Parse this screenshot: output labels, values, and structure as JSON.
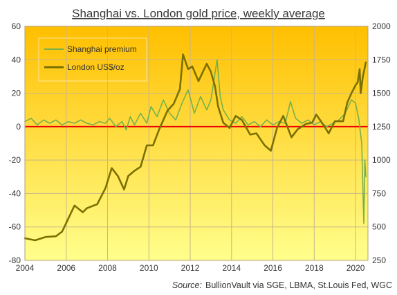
{
  "chart_data": {
    "type": "line",
    "title": "Shanghai vs. London gold price, weekly average",
    "source_label": "Source:",
    "source_text": "BullionVault via SGE, LBMA, St.Louis Fed, WGC",
    "x_range": [
      2004,
      2020.6
    ],
    "x_ticks": [
      "2004",
      "2006",
      "2008",
      "2010",
      "2012",
      "2014",
      "2016",
      "2018",
      "2020"
    ],
    "y_left_range": [
      -80,
      60
    ],
    "y_left_ticks": [
      "60",
      "40",
      "20",
      "0",
      "-20",
      "-40",
      "-60",
      "-80"
    ],
    "y_right_range": [
      250,
      2000
    ],
    "y_right_ticks": [
      "2000",
      "1750",
      "1500",
      "1250",
      "1000",
      "750",
      "500",
      "250"
    ],
    "grid": true,
    "legend_position": "top-left",
    "zero_line_color": "#ee0000",
    "background_gradient": [
      "#ffbf00",
      "#ffff8c"
    ],
    "series": [
      {
        "name": "Shanghai premium",
        "axis": "left",
        "color": "#77b04a",
        "points": [
          [
            2004.0,
            3
          ],
          [
            2004.3,
            5
          ],
          [
            2004.6,
            1
          ],
          [
            2004.9,
            4
          ],
          [
            2005.2,
            2
          ],
          [
            2005.5,
            4
          ],
          [
            2005.8,
            1
          ],
          [
            2006.1,
            3
          ],
          [
            2006.4,
            2
          ],
          [
            2006.7,
            4
          ],
          [
            2007.0,
            2
          ],
          [
            2007.3,
            1
          ],
          [
            2007.6,
            3
          ],
          [
            2007.9,
            2
          ],
          [
            2008.1,
            5
          ],
          [
            2008.4,
            0
          ],
          [
            2008.7,
            3
          ],
          [
            2008.9,
            -2
          ],
          [
            2009.1,
            6
          ],
          [
            2009.3,
            1
          ],
          [
            2009.6,
            8
          ],
          [
            2009.9,
            2
          ],
          [
            2010.1,
            12
          ],
          [
            2010.4,
            6
          ],
          [
            2010.7,
            16
          ],
          [
            2011.0,
            8
          ],
          [
            2011.3,
            4
          ],
          [
            2011.6,
            14
          ],
          [
            2011.9,
            22
          ],
          [
            2012.2,
            8
          ],
          [
            2012.5,
            18
          ],
          [
            2012.8,
            10
          ],
          [
            2013.0,
            16
          ],
          [
            2013.3,
            40
          ],
          [
            2013.45,
            18
          ],
          [
            2013.6,
            10
          ],
          [
            2013.9,
            4
          ],
          [
            2014.2,
            2
          ],
          [
            2014.5,
            6
          ],
          [
            2014.8,
            1
          ],
          [
            2015.1,
            3
          ],
          [
            2015.4,
            0
          ],
          [
            2015.7,
            4
          ],
          [
            2016.0,
            1
          ],
          [
            2016.3,
            3
          ],
          [
            2016.6,
            2
          ],
          [
            2016.85,
            15
          ],
          [
            2017.1,
            5
          ],
          [
            2017.4,
            2
          ],
          [
            2017.7,
            4
          ],
          [
            2018.0,
            1
          ],
          [
            2018.3,
            3
          ],
          [
            2018.6,
            0
          ],
          [
            2018.9,
            2
          ],
          [
            2019.2,
            4
          ],
          [
            2019.5,
            8
          ],
          [
            2019.8,
            16
          ],
          [
            2020.0,
            14
          ],
          [
            2020.15,
            5
          ],
          [
            2020.3,
            -10
          ],
          [
            2020.4,
            -58
          ],
          [
            2020.45,
            -20
          ],
          [
            2020.5,
            -30
          ]
        ]
      },
      {
        "name": "London US$/oz",
        "axis": "right",
        "color": "#7a7000",
        "points": [
          [
            2004.0,
            415
          ],
          [
            2004.5,
            400
          ],
          [
            2005.0,
            425
          ],
          [
            2005.5,
            430
          ],
          [
            2005.8,
            465
          ],
          [
            2006.0,
            530
          ],
          [
            2006.4,
            660
          ],
          [
            2006.8,
            610
          ],
          [
            2007.0,
            640
          ],
          [
            2007.5,
            670
          ],
          [
            2007.9,
            790
          ],
          [
            2008.2,
            940
          ],
          [
            2008.5,
            880
          ],
          [
            2008.8,
            780
          ],
          [
            2009.0,
            880
          ],
          [
            2009.3,
            920
          ],
          [
            2009.6,
            950
          ],
          [
            2009.9,
            1110
          ],
          [
            2010.2,
            1110
          ],
          [
            2010.5,
            1230
          ],
          [
            2010.9,
            1370
          ],
          [
            2011.2,
            1420
          ],
          [
            2011.5,
            1530
          ],
          [
            2011.65,
            1790
          ],
          [
            2011.9,
            1680
          ],
          [
            2012.1,
            1700
          ],
          [
            2012.4,
            1590
          ],
          [
            2012.8,
            1720
          ],
          [
            2013.0,
            1660
          ],
          [
            2013.2,
            1550
          ],
          [
            2013.35,
            1400
          ],
          [
            2013.6,
            1280
          ],
          [
            2013.9,
            1240
          ],
          [
            2014.2,
            1330
          ],
          [
            2014.5,
            1300
          ],
          [
            2014.9,
            1190
          ],
          [
            2015.2,
            1200
          ],
          [
            2015.6,
            1110
          ],
          [
            2015.9,
            1070
          ],
          [
            2016.2,
            1240
          ],
          [
            2016.5,
            1330
          ],
          [
            2016.9,
            1170
          ],
          [
            2017.2,
            1230
          ],
          [
            2017.6,
            1270
          ],
          [
            2017.9,
            1280
          ],
          [
            2018.1,
            1340
          ],
          [
            2018.5,
            1250
          ],
          [
            2018.7,
            1200
          ],
          [
            2019.0,
            1290
          ],
          [
            2019.4,
            1290
          ],
          [
            2019.6,
            1430
          ],
          [
            2019.8,
            1500
          ],
          [
            2020.0,
            1560
          ],
          [
            2020.1,
            1580
          ],
          [
            2020.2,
            1680
          ],
          [
            2020.25,
            1500
          ],
          [
            2020.35,
            1620
          ],
          [
            2020.5,
            1730
          ]
        ]
      }
    ]
  }
}
